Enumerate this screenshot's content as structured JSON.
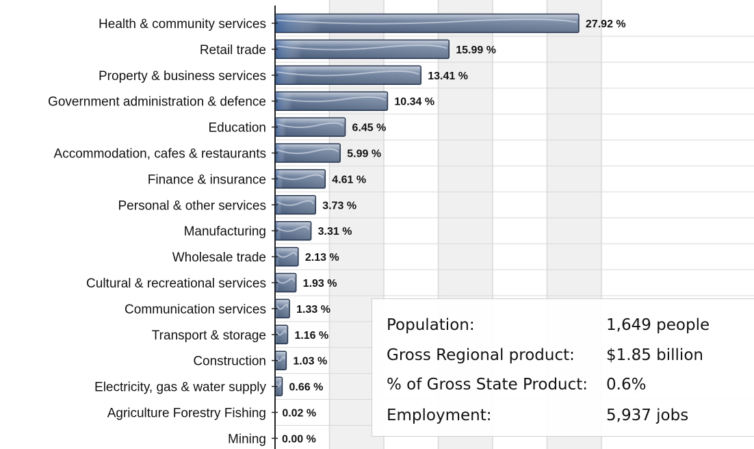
{
  "chart_data": {
    "type": "bar",
    "orientation": "horizontal",
    "title": "",
    "xlabel": "",
    "ylabel": "",
    "xlim": [
      0,
      35
    ],
    "grid": true,
    "value_suffix": " %",
    "colors": {
      "bar": "#5b6f8c",
      "bar_edge": "#26354d",
      "band": "#f0f0f0",
      "grid": "#d8d8d8"
    },
    "categories": [
      "Health & community services",
      "Retail trade",
      "Property & business services",
      "Government administration & defence",
      "Education",
      "Accommodation, cafes & restaurants",
      "Finance & insurance",
      "Personal & other services",
      "Manufacturing",
      "Wholesale trade",
      "Cultural & recreational services",
      "Communication services",
      "Transport & storage",
      "Construction",
      "Electricity, gas & water supply",
      "Agriculture Forestry Fishing",
      "Mining"
    ],
    "values": [
      27.92,
      15.99,
      13.41,
      10.34,
      6.45,
      5.99,
      4.61,
      3.73,
      3.31,
      2.13,
      1.93,
      1.33,
      1.16,
      1.03,
      0.66,
      0.02,
      0.0
    ],
    "data_labels": [
      "27.92 %",
      "15.99 %",
      "13.41 %",
      "10.34 %",
      "6.45 %",
      "5.99 %",
      "4.61 %",
      "3.73 %",
      "3.31 %",
      "2.13 %",
      "1.93 %",
      "1.33 %",
      "1.16 %",
      "1.03 %",
      "0.66 %",
      "0.02 %",
      "0.00 %"
    ]
  },
  "stats": [
    {
      "label": "Population:",
      "value": "1,649 people"
    },
    {
      "label": "Gross Regional product:",
      "value": "$1.85 billion"
    },
    {
      "label": "% of Gross State Product:",
      "value": "0.6%"
    },
    {
      "label": "Employment:",
      "value": "5,937 jobs"
    }
  ]
}
